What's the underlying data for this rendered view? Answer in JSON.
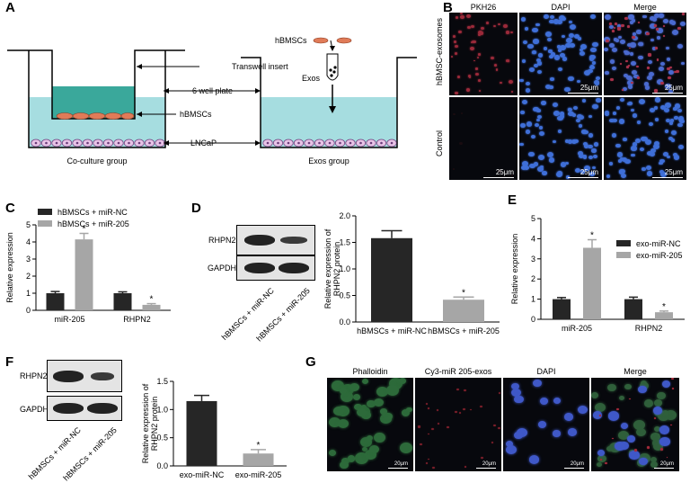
{
  "panels": {
    "a": {
      "letter": "A",
      "labels": {
        "transwell": "Transwell insert",
        "plate": "6 well plate",
        "hbmscs": "hBMSCs",
        "lncap": "LNCaP",
        "coculture": "Co-culture group",
        "exos_group": "Exos group",
        "hbmscs_top": "hBMSCs",
        "exos": "Exos"
      }
    },
    "b": {
      "letter": "B",
      "columns": [
        "PKH26",
        "DAPI",
        "Merge"
      ],
      "rows": [
        "hBMSC-exosomes",
        "Control"
      ],
      "scale": "25μm"
    },
    "c": {
      "letter": "C",
      "chart_data": {
        "type": "bar",
        "categories": [
          "miR-205",
          "RHPN2"
        ],
        "series": [
          {
            "name": "hBMSCs + miR-NC",
            "values": [
              1.0,
              1.0
            ],
            "err": [
              0.1,
              0.08
            ],
            "color": "#262626"
          },
          {
            "name": "hBMSCs + miR-205",
            "values": [
              4.15,
              0.32
            ],
            "err": [
              0.35,
              0.07
            ],
            "color": "#a6a6a6"
          }
        ],
        "ylabel": "Relative expression",
        "ylim": [
          0,
          5
        ],
        "yticks": [
          "0",
          "1",
          "2",
          "3",
          "4",
          "5"
        ],
        "significance": [
          false,
          true,
          false,
          true
        ]
      }
    },
    "d": {
      "letter": "D",
      "blot": {
        "rows": [
          "RHPN2",
          "GAPDH"
        ],
        "lanes": [
          "hBMSCs + miR-NC",
          "hBMSCs + miR-205"
        ]
      },
      "chart_data": {
        "type": "bar",
        "categories": [
          "hBMSCs + miR-NC",
          "hBMSCs + miR-205"
        ],
        "values": [
          1.58,
          0.42
        ],
        "err": [
          0.14,
          0.05
        ],
        "colors": [
          "#262626",
          "#a6a6a6"
        ],
        "ylabel": "Relative expression of RHPN2 protein",
        "ylim": [
          0,
          2.0
        ],
        "yticks": [
          "0.0",
          "0.5",
          "1.0",
          "1.5",
          "2.0"
        ],
        "significance": [
          false,
          true
        ]
      }
    },
    "e": {
      "letter": "E",
      "chart_data": {
        "type": "bar",
        "categories": [
          "miR-205",
          "RHPN2"
        ],
        "series": [
          {
            "name": "exo-miR-NC",
            "values": [
              1.0,
              1.0
            ],
            "err": [
              0.08,
              0.1
            ],
            "color": "#262626"
          },
          {
            "name": "exo-miR-205",
            "values": [
              3.55,
              0.35
            ],
            "err": [
              0.4,
              0.06
            ],
            "color": "#a6a6a6"
          }
        ],
        "ylabel": "Relative expression",
        "ylim": [
          0,
          5
        ],
        "yticks": [
          "0",
          "1",
          "2",
          "3",
          "4",
          "5"
        ],
        "significance": [
          false,
          true,
          false,
          true
        ]
      }
    },
    "f": {
      "letter": "F",
      "blot": {
        "rows": [
          "RHPN2",
          "GAPDH"
        ],
        "lanes": [
          "hBMSCs + miR-NC",
          "hBMSCs + miR-205"
        ]
      },
      "chart_data": {
        "type": "bar",
        "categories": [
          "exo-miR-NC",
          "exo-miR-205"
        ],
        "values": [
          1.15,
          0.22
        ],
        "err": [
          0.1,
          0.07
        ],
        "colors": [
          "#262626",
          "#a6a6a6"
        ],
        "ylabel": "Relative expression of RHPN2 protein",
        "ylim": [
          0,
          1.5
        ],
        "yticks": [
          "0.0",
          "0.5",
          "1.0",
          "1.5"
        ],
        "significance": [
          false,
          true
        ]
      }
    },
    "g": {
      "letter": "G",
      "columns": [
        "Phalloidin",
        "Cy3-miR 205-exos",
        "DAPI",
        "Merge"
      ],
      "scale": "20μm"
    }
  }
}
